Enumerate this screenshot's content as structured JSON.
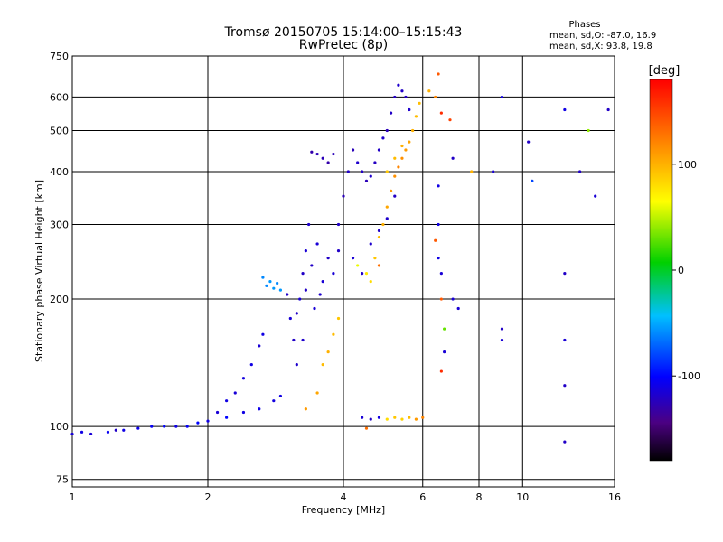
{
  "chart_data": {
    "type": "scatter",
    "title": "Tromsø 20150705 15:14:00–15:15:43",
    "subtitle": "RwPretec (8p)",
    "xlabel": "Frequency [MHz]",
    "ylabel": "Stationary phase Virtual Height [km]",
    "xscale": "log",
    "yscale": "log",
    "xlim": [
      1,
      16
    ],
    "ylim": [
      72,
      750
    ],
    "xticks": [
      1,
      2,
      4,
      6,
      8,
      10,
      16
    ],
    "xtick_labels": [
      "1",
      "2",
      "4",
      "6",
      "8",
      "10",
      "16"
    ],
    "yticks": [
      75,
      100,
      200,
      300,
      400,
      500,
      600,
      750
    ],
    "ytick_labels": [
      "75",
      "100",
      "200",
      "300",
      "400",
      "500",
      "600",
      "750"
    ],
    "grid": true,
    "stats": {
      "title": "Phases",
      "line_o": "mean, sd,O: -87.0, 16.9",
      "line_x": "mean, sd,X:  93.8, 19.8"
    },
    "colorbar": {
      "label": "[deg]",
      "range": [
        -180,
        180
      ],
      "ticks": [
        100,
        0,
        -100
      ],
      "tick_labels": [
        "100",
        "0",
        "-100"
      ]
    },
    "series": [
      {
        "values": [
          [
            1.0,
            96,
            -115
          ],
          [
            1.05,
            97,
            -110
          ],
          [
            1.1,
            96,
            -115
          ],
          [
            1.2,
            97,
            -105
          ],
          [
            1.25,
            98,
            -120
          ],
          [
            1.3,
            98,
            -110
          ],
          [
            1.4,
            99,
            -108
          ],
          [
            1.5,
            100,
            -105
          ],
          [
            1.6,
            100,
            -100
          ],
          [
            1.7,
            100,
            -110
          ],
          [
            1.8,
            100,
            -104
          ],
          [
            1.9,
            102,
            -100
          ],
          [
            2.0,
            103,
            -110
          ],
          [
            2.1,
            108,
            -115
          ],
          [
            2.2,
            115,
            -110
          ],
          [
            2.3,
            120,
            -115
          ],
          [
            2.4,
            130,
            -112
          ],
          [
            2.5,
            140,
            -110
          ],
          [
            2.6,
            155,
            -115
          ],
          [
            2.65,
            165,
            -110
          ],
          [
            2.2,
            105,
            -100
          ],
          [
            2.4,
            108,
            -110
          ],
          [
            2.6,
            110,
            -108
          ],
          [
            2.8,
            115,
            -112
          ],
          [
            2.9,
            118,
            -110
          ],
          [
            2.65,
            225,
            -60
          ],
          [
            2.7,
            215,
            -60
          ],
          [
            2.75,
            220,
            -55
          ],
          [
            2.8,
            212,
            -55
          ],
          [
            2.85,
            218,
            -60
          ],
          [
            2.9,
            210,
            -55
          ],
          [
            3.0,
            205,
            -120
          ],
          [
            3.05,
            180,
            -115
          ],
          [
            3.1,
            160,
            -120
          ],
          [
            3.15,
            140,
            -118
          ],
          [
            3.2,
            200,
            -115
          ],
          [
            3.25,
            230,
            -120
          ],
          [
            3.3,
            260,
            -115
          ],
          [
            3.35,
            300,
            -118
          ],
          [
            3.4,
            240,
            -120
          ],
          [
            3.5,
            270,
            -115
          ],
          [
            3.6,
            220,
            -115
          ],
          [
            3.7,
            250,
            -120
          ],
          [
            3.8,
            230,
            -115
          ],
          [
            3.9,
            260,
            -120
          ],
          [
            3.3,
            210,
            -120
          ],
          [
            3.45,
            190,
            -115
          ],
          [
            3.55,
            205,
            -118
          ],
          [
            3.25,
            160,
            -118
          ],
          [
            3.15,
            185,
            -120
          ],
          [
            3.4,
            445,
            -130
          ],
          [
            3.5,
            440,
            -125
          ],
          [
            3.6,
            430,
            -125
          ],
          [
            3.7,
            420,
            -130
          ],
          [
            3.8,
            440,
            -125
          ],
          [
            3.9,
            300,
            -120
          ],
          [
            4.0,
            350,
            -125
          ],
          [
            4.1,
            400,
            -120
          ],
          [
            4.2,
            450,
            -125
          ],
          [
            4.3,
            420,
            -118
          ],
          [
            4.4,
            400,
            -120
          ],
          [
            4.5,
            380,
            -125
          ],
          [
            4.6,
            390,
            -118
          ],
          [
            4.7,
            420,
            -122
          ],
          [
            4.8,
            450,
            -120
          ],
          [
            4.9,
            480,
            -118
          ],
          [
            5.0,
            500,
            -125
          ],
          [
            5.1,
            550,
            -120
          ],
          [
            5.2,
            600,
            -122
          ],
          [
            5.3,
            640,
            -118
          ],
          [
            5.4,
            620,
            -120
          ],
          [
            5.5,
            600,
            -122
          ],
          [
            5.6,
            560,
            -118
          ],
          [
            4.2,
            250,
            -115
          ],
          [
            4.4,
            230,
            -120
          ],
          [
            4.6,
            270,
            -118
          ],
          [
            4.8,
            290,
            -120
          ],
          [
            5.0,
            310,
            -118
          ],
          [
            5.2,
            350,
            -120
          ],
          [
            4.3,
            240,
            60
          ],
          [
            4.5,
            230,
            75
          ],
          [
            4.6,
            220,
            80
          ],
          [
            4.7,
            250,
            90
          ],
          [
            4.8,
            280,
            95
          ],
          [
            4.9,
            300,
            100
          ],
          [
            5.0,
            330,
            105
          ],
          [
            5.1,
            360,
            110
          ],
          [
            5.2,
            390,
            115
          ],
          [
            5.3,
            410,
            120
          ],
          [
            5.4,
            430,
            115
          ],
          [
            5.5,
            450,
            110
          ],
          [
            5.6,
            470,
            105
          ],
          [
            5.7,
            500,
            100
          ],
          [
            5.8,
            540,
            95
          ],
          [
            5.9,
            580,
            95
          ],
          [
            5.0,
            400,
            90
          ],
          [
            5.2,
            430,
            95
          ],
          [
            5.4,
            460,
            100
          ],
          [
            4.8,
            240,
            130
          ],
          [
            3.6,
            140,
            95
          ],
          [
            3.7,
            150,
            100
          ],
          [
            3.8,
            165,
            95
          ],
          [
            3.9,
            180,
            90
          ],
          [
            3.5,
            120,
            105
          ],
          [
            3.3,
            110,
            110
          ],
          [
            4.4,
            105,
            -115
          ],
          [
            4.6,
            104,
            -120
          ],
          [
            4.8,
            105,
            -110
          ],
          [
            5.0,
            104,
            80
          ],
          [
            5.2,
            105,
            90
          ],
          [
            5.4,
            104,
            85
          ],
          [
            5.6,
            105,
            95
          ],
          [
            5.8,
            104,
            110
          ],
          [
            6.0,
            105,
            120
          ],
          [
            4.5,
            99,
            130
          ],
          [
            6.2,
            620,
            100
          ],
          [
            6.4,
            600,
            120
          ],
          [
            6.5,
            680,
            140
          ],
          [
            6.6,
            550,
            160
          ],
          [
            6.5,
            370,
            -110
          ],
          [
            6.5,
            300,
            -110
          ],
          [
            6.4,
            275,
            140
          ],
          [
            6.5,
            250,
            -110
          ],
          [
            6.6,
            230,
            -115
          ],
          [
            6.6,
            200,
            140
          ],
          [
            6.7,
            170,
            30
          ],
          [
            6.7,
            150,
            -115
          ],
          [
            6.6,
            135,
            160
          ],
          [
            6.9,
            530,
            150
          ],
          [
            7.0,
            430,
            -120
          ],
          [
            7.0,
            200,
            -115
          ],
          [
            7.2,
            190,
            -115
          ],
          [
            7.7,
            400,
            100
          ],
          [
            9.0,
            600,
            -110
          ],
          [
            8.6,
            400,
            -115
          ],
          [
            9.0,
            170,
            -120
          ],
          [
            9.0,
            160,
            -115
          ],
          [
            10.3,
            470,
            -120
          ],
          [
            10.5,
            380,
            -80
          ],
          [
            12.4,
            560,
            -110
          ],
          [
            12.4,
            230,
            -120
          ],
          [
            12.4,
            160,
            -115
          ],
          [
            12.4,
            125,
            -120
          ],
          [
            12.4,
            92,
            -120
          ],
          [
            13.4,
            400,
            -120
          ],
          [
            14.5,
            350,
            -115
          ],
          [
            14.0,
            500,
            40
          ],
          [
            15.5,
            560,
            -120
          ]
        ]
      }
    ]
  }
}
